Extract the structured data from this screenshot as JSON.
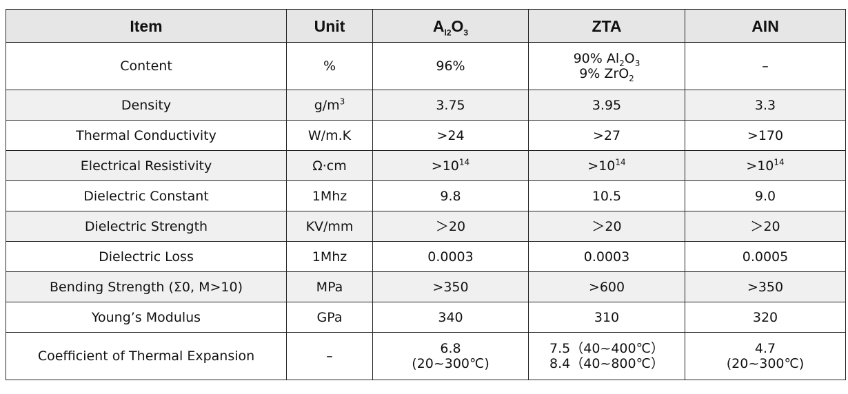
{
  "table": {
    "header": [
      "Item",
      "Unit",
      [
        [
          "A",
          {
            "sub": "l2"
          },
          "O",
          {
            "sub": "3"
          }
        ]
      ],
      "ZTA",
      "AIN"
    ],
    "rows": [
      [
        "Content",
        "%",
        "96%",
        [
          [
            "90% Al",
            {
              "sub": "2"
            },
            "O",
            {
              "sub": "3"
            }
          ],
          [
            "9% ZrO",
            {
              "sub": "2"
            }
          ]
        ],
        "–"
      ],
      [
        "Density",
        [
          [
            "g/m",
            {
              "sup": "3"
            }
          ]
        ],
        "3.75",
        "3.95",
        "3.3"
      ],
      [
        "Thermal Conductivity",
        "W/m.K",
        ">24",
        ">27",
        ">170"
      ],
      [
        "Electrical Resistivity",
        "Ω·cm",
        [
          [
            ">10",
            {
              "sup": "14"
            }
          ]
        ],
        [
          [
            ">10",
            {
              "sup": "14"
            }
          ]
        ],
        [
          [
            ">10",
            {
              "sup": "14"
            }
          ]
        ]
      ],
      [
        "Dielectric Constant",
        "1Mhz",
        "9.8",
        "10.5",
        "9.0"
      ],
      [
        "Dielectric Strength",
        "KV/mm",
        "＞20",
        "＞20",
        "＞20"
      ],
      [
        "Dielectric Loss",
        "1Mhz",
        "0.0003",
        "0.0003",
        "0.0005"
      ],
      [
        "Bending Strength (Σ0, M>10)",
        "MPa",
        ">350",
        ">600",
        ">350"
      ],
      [
        "Young’s Modulus",
        "GPa",
        "340",
        "310",
        "320"
      ],
      [
        "Coefficient of Thermal Expansion",
        "–",
        [
          "6.8",
          "(20~300℃)"
        ],
        [
          "7.5（40~400℃）",
          "8.4（40~800℃）"
        ],
        [
          "4.7",
          "(20~300℃)"
        ]
      ]
    ]
  }
}
